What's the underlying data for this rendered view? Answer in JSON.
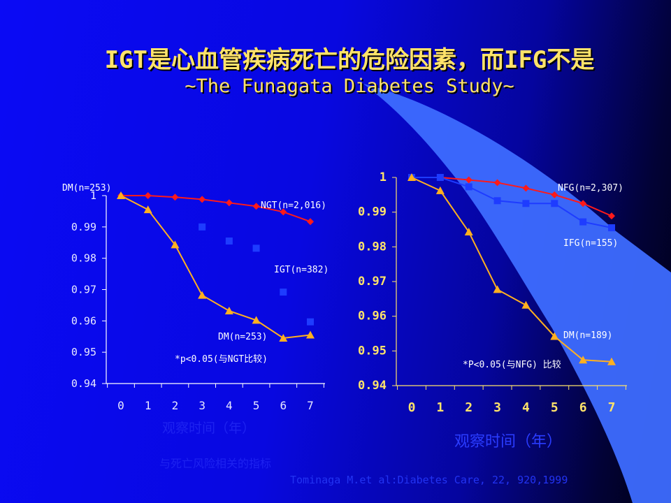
{
  "title": {
    "main": "IGT是心血管疾病死亡的危险因素，而IFG不是",
    "sub": "~The Funagata Diabetes Study~"
  },
  "colors": {
    "title": "#ffe36a",
    "red_series": "#ff1a1a",
    "blue_series": "#1e3cff",
    "yellow_series": "#ffb020",
    "axis_white": "#ffffff",
    "axis_yellow": "#ffe36a"
  },
  "left_panel": {
    "xcaption": "观察时间（年）",
    "xcaption2": "与死亡风险相关的指标",
    "note": "*p<0.05(与NGT比较)",
    "top_label": "DM(n=253)"
  },
  "right_panel": {
    "xcaption": "观察时间（年）",
    "note": "*P<0.05(与NFG) 比较"
  },
  "citation": "Tominaga M.et al:Diabetes Care, 22, 920,1999",
  "chart_data": [
    {
      "type": "line",
      "x": [
        0,
        1,
        2,
        3,
        4,
        5,
        6,
        7
      ],
      "categories": [
        "0",
        "1",
        "2",
        "3",
        "4",
        "5",
        "6",
        "7"
      ],
      "yticks": [
        "0.94",
        "0.95",
        "0.96",
        "0.97",
        "0.98",
        "0.99",
        "1"
      ],
      "ylim": [
        0.94,
        1.0
      ],
      "series": [
        {
          "name": "NGT(n=2,016)",
          "values": [
            1.0,
            1.0,
            0.9995,
            0.9988,
            0.9977,
            0.9966,
            0.9948,
            0.9917
          ]
        },
        {
          "name": "IGT(n=382)",
          "values": [
            null,
            null,
            null,
            0.99,
            0.9855,
            0.9832,
            0.9692,
            0.9597
          ]
        },
        {
          "name": "DM(n=253)",
          "values": [
            1.0,
            0.9955,
            0.9843,
            0.9682,
            0.9632,
            0.9602,
            0.9545,
            0.9555
          ]
        }
      ]
    },
    {
      "type": "line",
      "x": [
        0,
        1,
        2,
        3,
        4,
        5,
        6,
        7
      ],
      "categories": [
        "0",
        "1",
        "2",
        "3",
        "4",
        "5",
        "6",
        "7"
      ],
      "yticks": [
        "0.94",
        "0.95",
        "0.96",
        "0.97",
        "0.98",
        "0.99",
        "1"
      ],
      "ylim": [
        0.94,
        1.0
      ],
      "series": [
        {
          "name": "NFG(n=2,307)",
          "values": [
            1.0,
            1.0,
            0.9993,
            0.9985,
            0.9969,
            0.995,
            0.9925,
            0.9889
          ]
        },
        {
          "name": "IFG(n=155)",
          "values": [
            1.0,
            1.0,
            0.9973,
            0.9933,
            0.9925,
            0.9925,
            0.9872,
            0.9855
          ]
        },
        {
          "name": "DM(n=189)",
          "values": [
            1.0,
            0.9962,
            0.9843,
            0.9677,
            0.9632,
            0.9542,
            0.9474,
            0.9469
          ]
        }
      ]
    }
  ]
}
